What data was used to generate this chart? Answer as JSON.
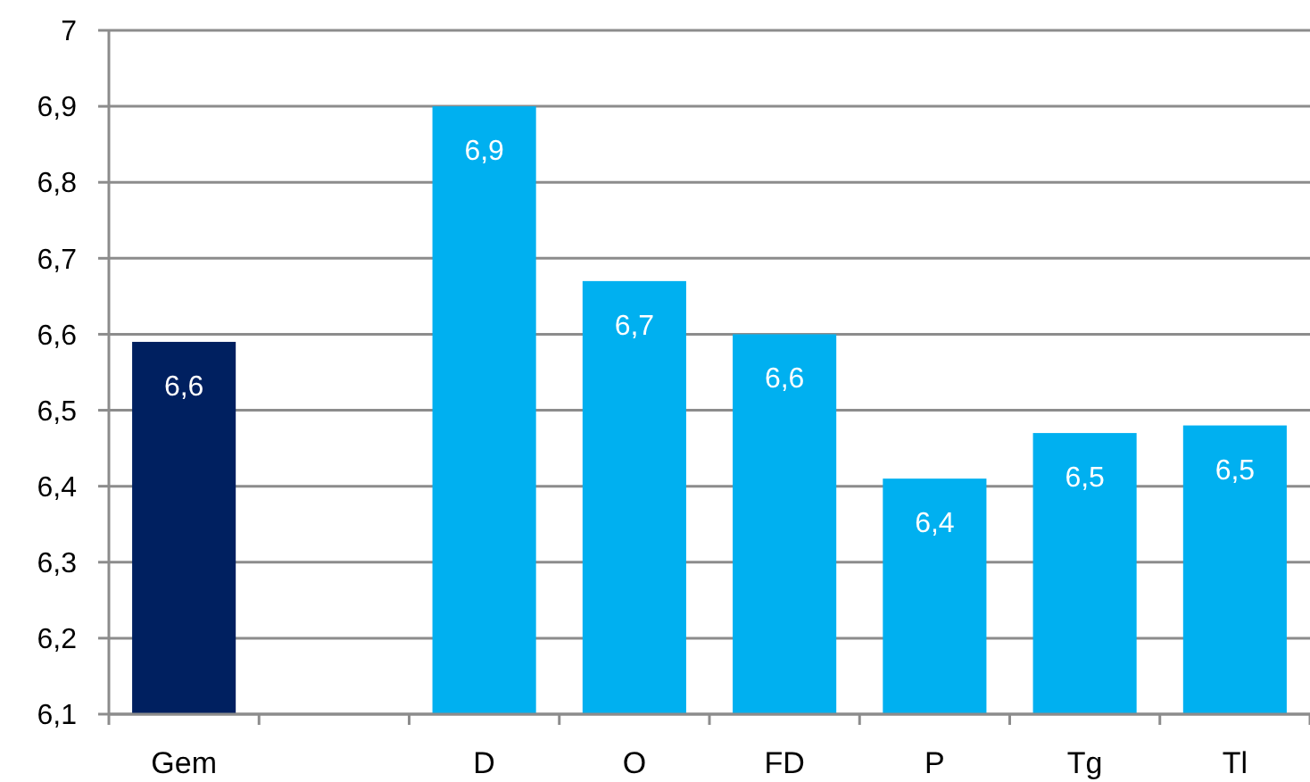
{
  "chart_data": {
    "type": "bar",
    "categories": [
      "Gem",
      null,
      "D",
      "O",
      "FD",
      "P",
      "Tg",
      "Tl"
    ],
    "values": [
      6.59,
      null,
      6.9,
      6.67,
      6.6,
      6.41,
      6.47,
      6.48
    ],
    "colors": [
      "#002060",
      null,
      "#00b0f0",
      "#00b0f0",
      "#00b0f0",
      "#00b0f0",
      "#00b0f0",
      "#00b0f0"
    ],
    "value_labels": [
      "6,6",
      null,
      "6,9",
      "6,7",
      "6,6",
      "6,4",
      "6,5",
      "6,5"
    ],
    "ylim": [
      6.1,
      7
    ],
    "yticks": [
      {
        "value": 6.1,
        "label": "6,1"
      },
      {
        "value": 6.2,
        "label": "6,2"
      },
      {
        "value": 6.3,
        "label": "6,3"
      },
      {
        "value": 6.4,
        "label": "6,4"
      },
      {
        "value": 6.5,
        "label": "6,5"
      },
      {
        "value": 6.6,
        "label": "6,6"
      },
      {
        "value": 6.7,
        "label": "6,7"
      },
      {
        "value": 6.8,
        "label": "6,8"
      },
      {
        "value": 6.9,
        "label": "6,9"
      },
      7
    ],
    "grid": "y"
  }
}
